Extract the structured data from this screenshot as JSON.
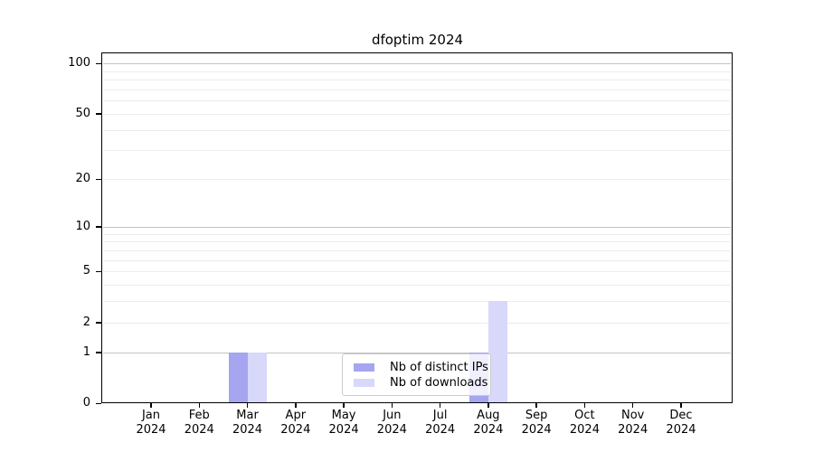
{
  "chart_data": {
    "type": "bar",
    "title": "dfoptim 2024",
    "categories": [
      "Jan 2024",
      "Feb 2024",
      "Mar 2024",
      "Apr 2024",
      "May 2024",
      "Jun 2024",
      "Jul 2024",
      "Aug 2024",
      "Sep 2024",
      "Oct 2024",
      "Nov 2024",
      "Dec 2024"
    ],
    "series": [
      {
        "name": "Nb of distinct IPs",
        "color": "#a5a5f0",
        "values": [
          0,
          0,
          1,
          0,
          0,
          0,
          0,
          1,
          0,
          0,
          0,
          0
        ]
      },
      {
        "name": "Nb of downloads",
        "color": "#d8d8fa",
        "values": [
          0,
          0,
          1,
          0,
          0,
          0,
          0,
          3,
          0,
          0,
          0,
          0
        ]
      }
    ],
    "yscale": "log1p",
    "ylim": [
      0,
      115
    ],
    "yticks": [
      0,
      1,
      2,
      5,
      10,
      20,
      50,
      100
    ],
    "major_gridlines": [
      1,
      10,
      100
    ],
    "minor_gridlines": [
      2,
      3,
      4,
      5,
      6,
      7,
      8,
      9,
      20,
      30,
      40,
      50,
      60,
      70,
      80,
      90
    ],
    "grid": "horizontal",
    "legend": {
      "position": "inside-bottom-center",
      "entries": [
        "Nb of distinct IPs",
        "Nb of downloads"
      ]
    }
  }
}
